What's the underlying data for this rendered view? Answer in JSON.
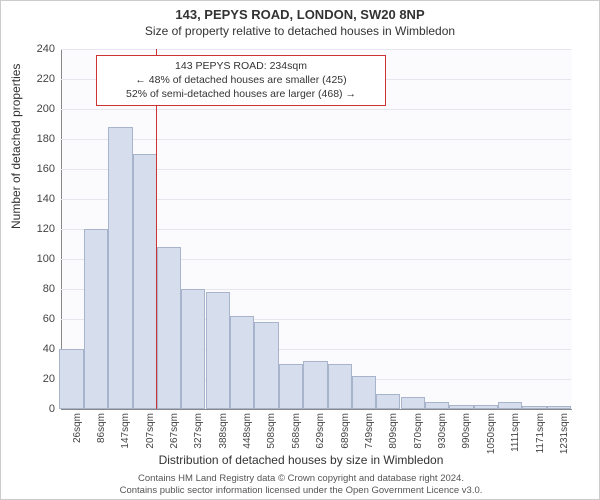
{
  "title": "143, PEPYS ROAD, LONDON, SW20 8NP",
  "subtitle": "Size of property relative to detached houses in Wimbledon",
  "ylabel": "Number of detached properties",
  "xlabel": "Distribution of detached houses by size in Wimbledon",
  "footer_line1": "Contains HM Land Registry data © Crown copyright and database right 2024.",
  "footer_line2": "Contains public sector information licensed under the Open Government Licence v3.0.",
  "chart": {
    "type": "histogram",
    "ylim": [
      0,
      240
    ],
    "ytick_step": 20,
    "xlim_sqm": [
      0,
      1261
    ],
    "categories_sqm": [
      26,
      86,
      147,
      207,
      267,
      327,
      388,
      448,
      508,
      568,
      629,
      689,
      749,
      809,
      870,
      930,
      990,
      1050,
      1111,
      1171,
      1231
    ],
    "values": [
      40,
      120,
      188,
      170,
      108,
      80,
      78,
      62,
      58,
      30,
      32,
      30,
      22,
      10,
      8,
      5,
      3,
      3,
      5,
      2,
      2
    ],
    "bar_width_sqm": 60,
    "bar_fill": "#d6deee",
    "bar_border": "#a8b3cc",
    "grid_color": "#e6e6ee",
    "plot_bg": "#fbfbfd",
    "axis_color": "#888888",
    "marker_sqm": 234,
    "marker_color": "#cc3333",
    "tick_fontsize": 10,
    "label_fontsize": 12,
    "title_fontsize": 13
  },
  "annotation": {
    "line1": "143 PEPYS ROAD: 234sqm",
    "line2": "← 48% of detached houses are smaller (425)",
    "line3": "52% of semi-detached houses are larger (468) →",
    "border_color": "#cc3333",
    "bg": "#ffffff"
  }
}
